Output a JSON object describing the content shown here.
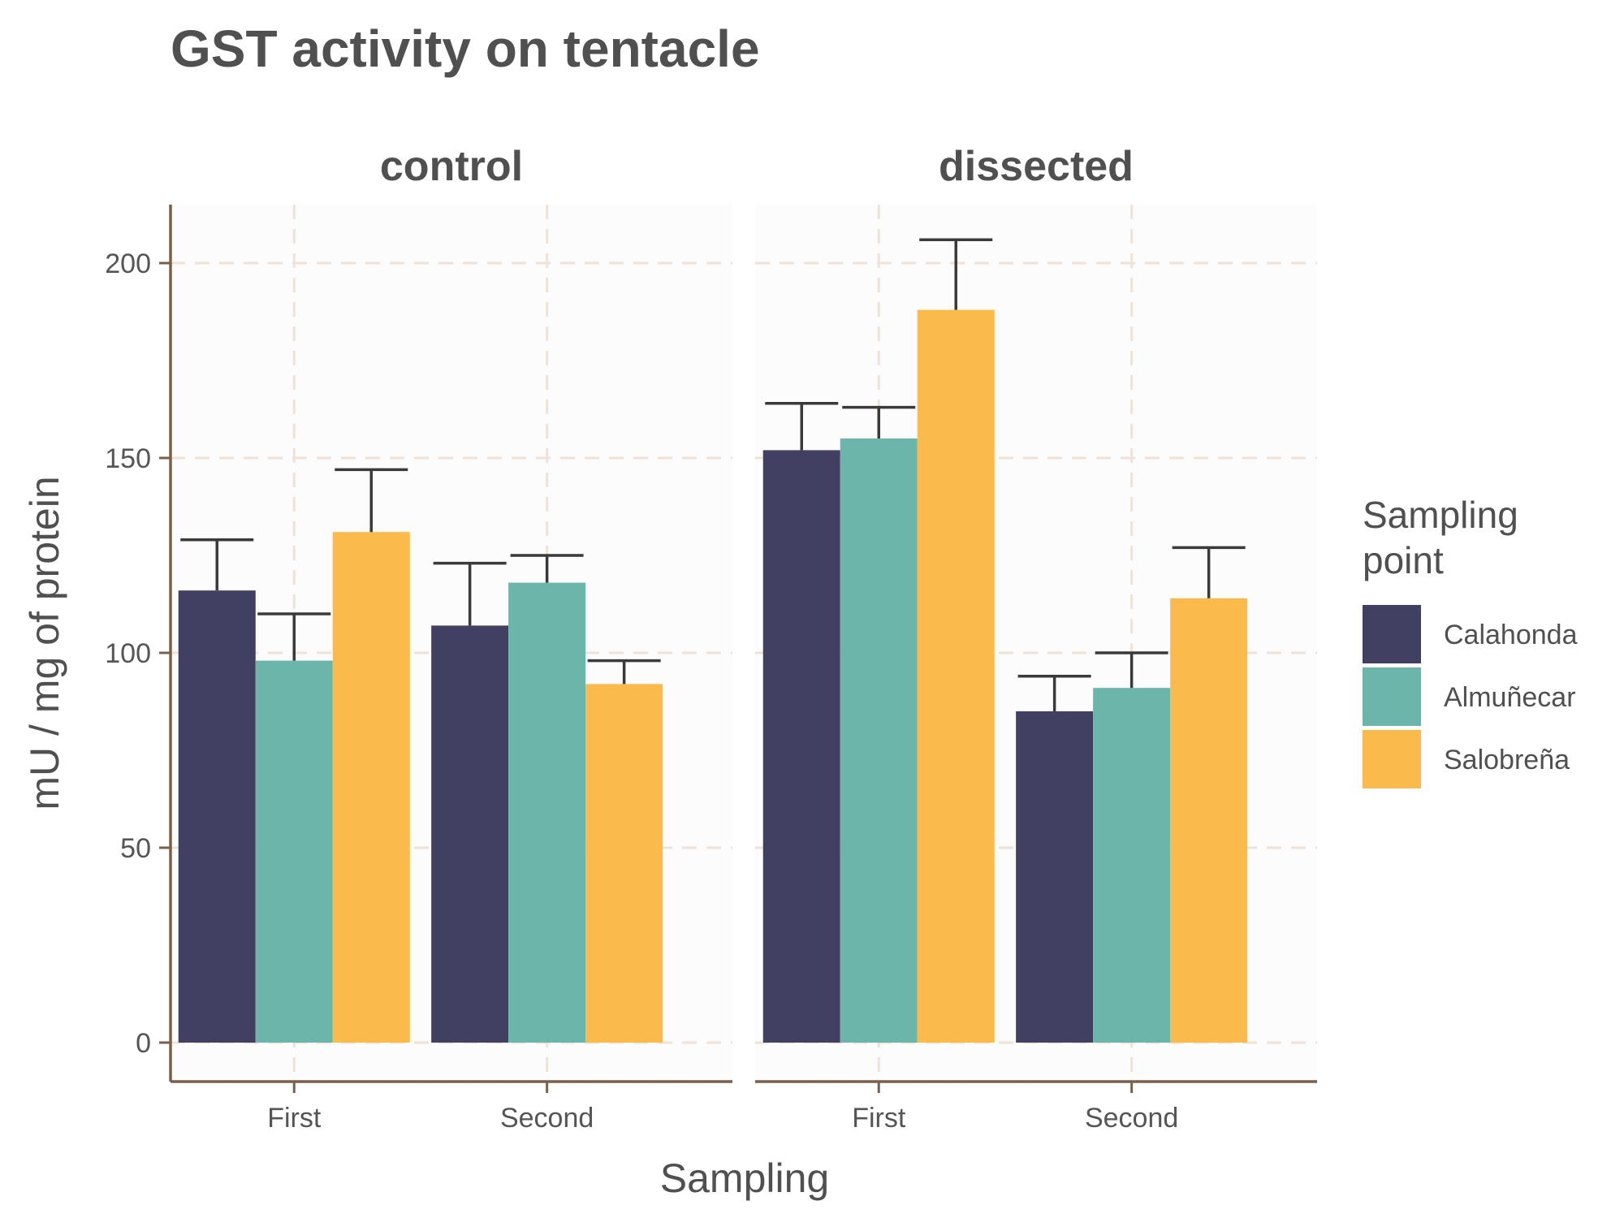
{
  "chart_data": {
    "type": "bar",
    "title": "GST activity on tentacle",
    "xlabel": "Sampling",
    "ylabel": "mU / mg  of protein",
    "ylim": [
      -10,
      215
    ],
    "yticks": [
      0,
      50,
      100,
      150,
      200
    ],
    "grid": true,
    "legend": {
      "title_lines": [
        "Sampling",
        "point"
      ],
      "placement": "right"
    },
    "categories": [
      "First",
      "Second"
    ],
    "panels": [
      {
        "name": "control",
        "series": [
          {
            "name": "Calahonda",
            "values": [
              116,
              107
            ],
            "errors": [
              13,
              16
            ]
          },
          {
            "name": "Almuñecar",
            "values": [
              98,
              118
            ],
            "errors": [
              12,
              7
            ]
          },
          {
            "name": "Salobreña",
            "values": [
              131,
              92
            ],
            "errors": [
              16,
              6
            ]
          }
        ]
      },
      {
        "name": "dissected",
        "series": [
          {
            "name": "Calahonda",
            "values": [
              152,
              85
            ],
            "errors": [
              12,
              9
            ]
          },
          {
            "name": "Almuñecar",
            "values": [
              155,
              91
            ],
            "errors": [
              8,
              9
            ]
          },
          {
            "name": "Salobreña",
            "values": [
              188,
              114
            ],
            "errors": [
              18,
              13
            ]
          }
        ]
      }
    ],
    "colors": {
      "Calahonda": "#414063",
      "Almuñecar": "#6bb5aa",
      "Salobreña": "#fabb4c"
    }
  }
}
